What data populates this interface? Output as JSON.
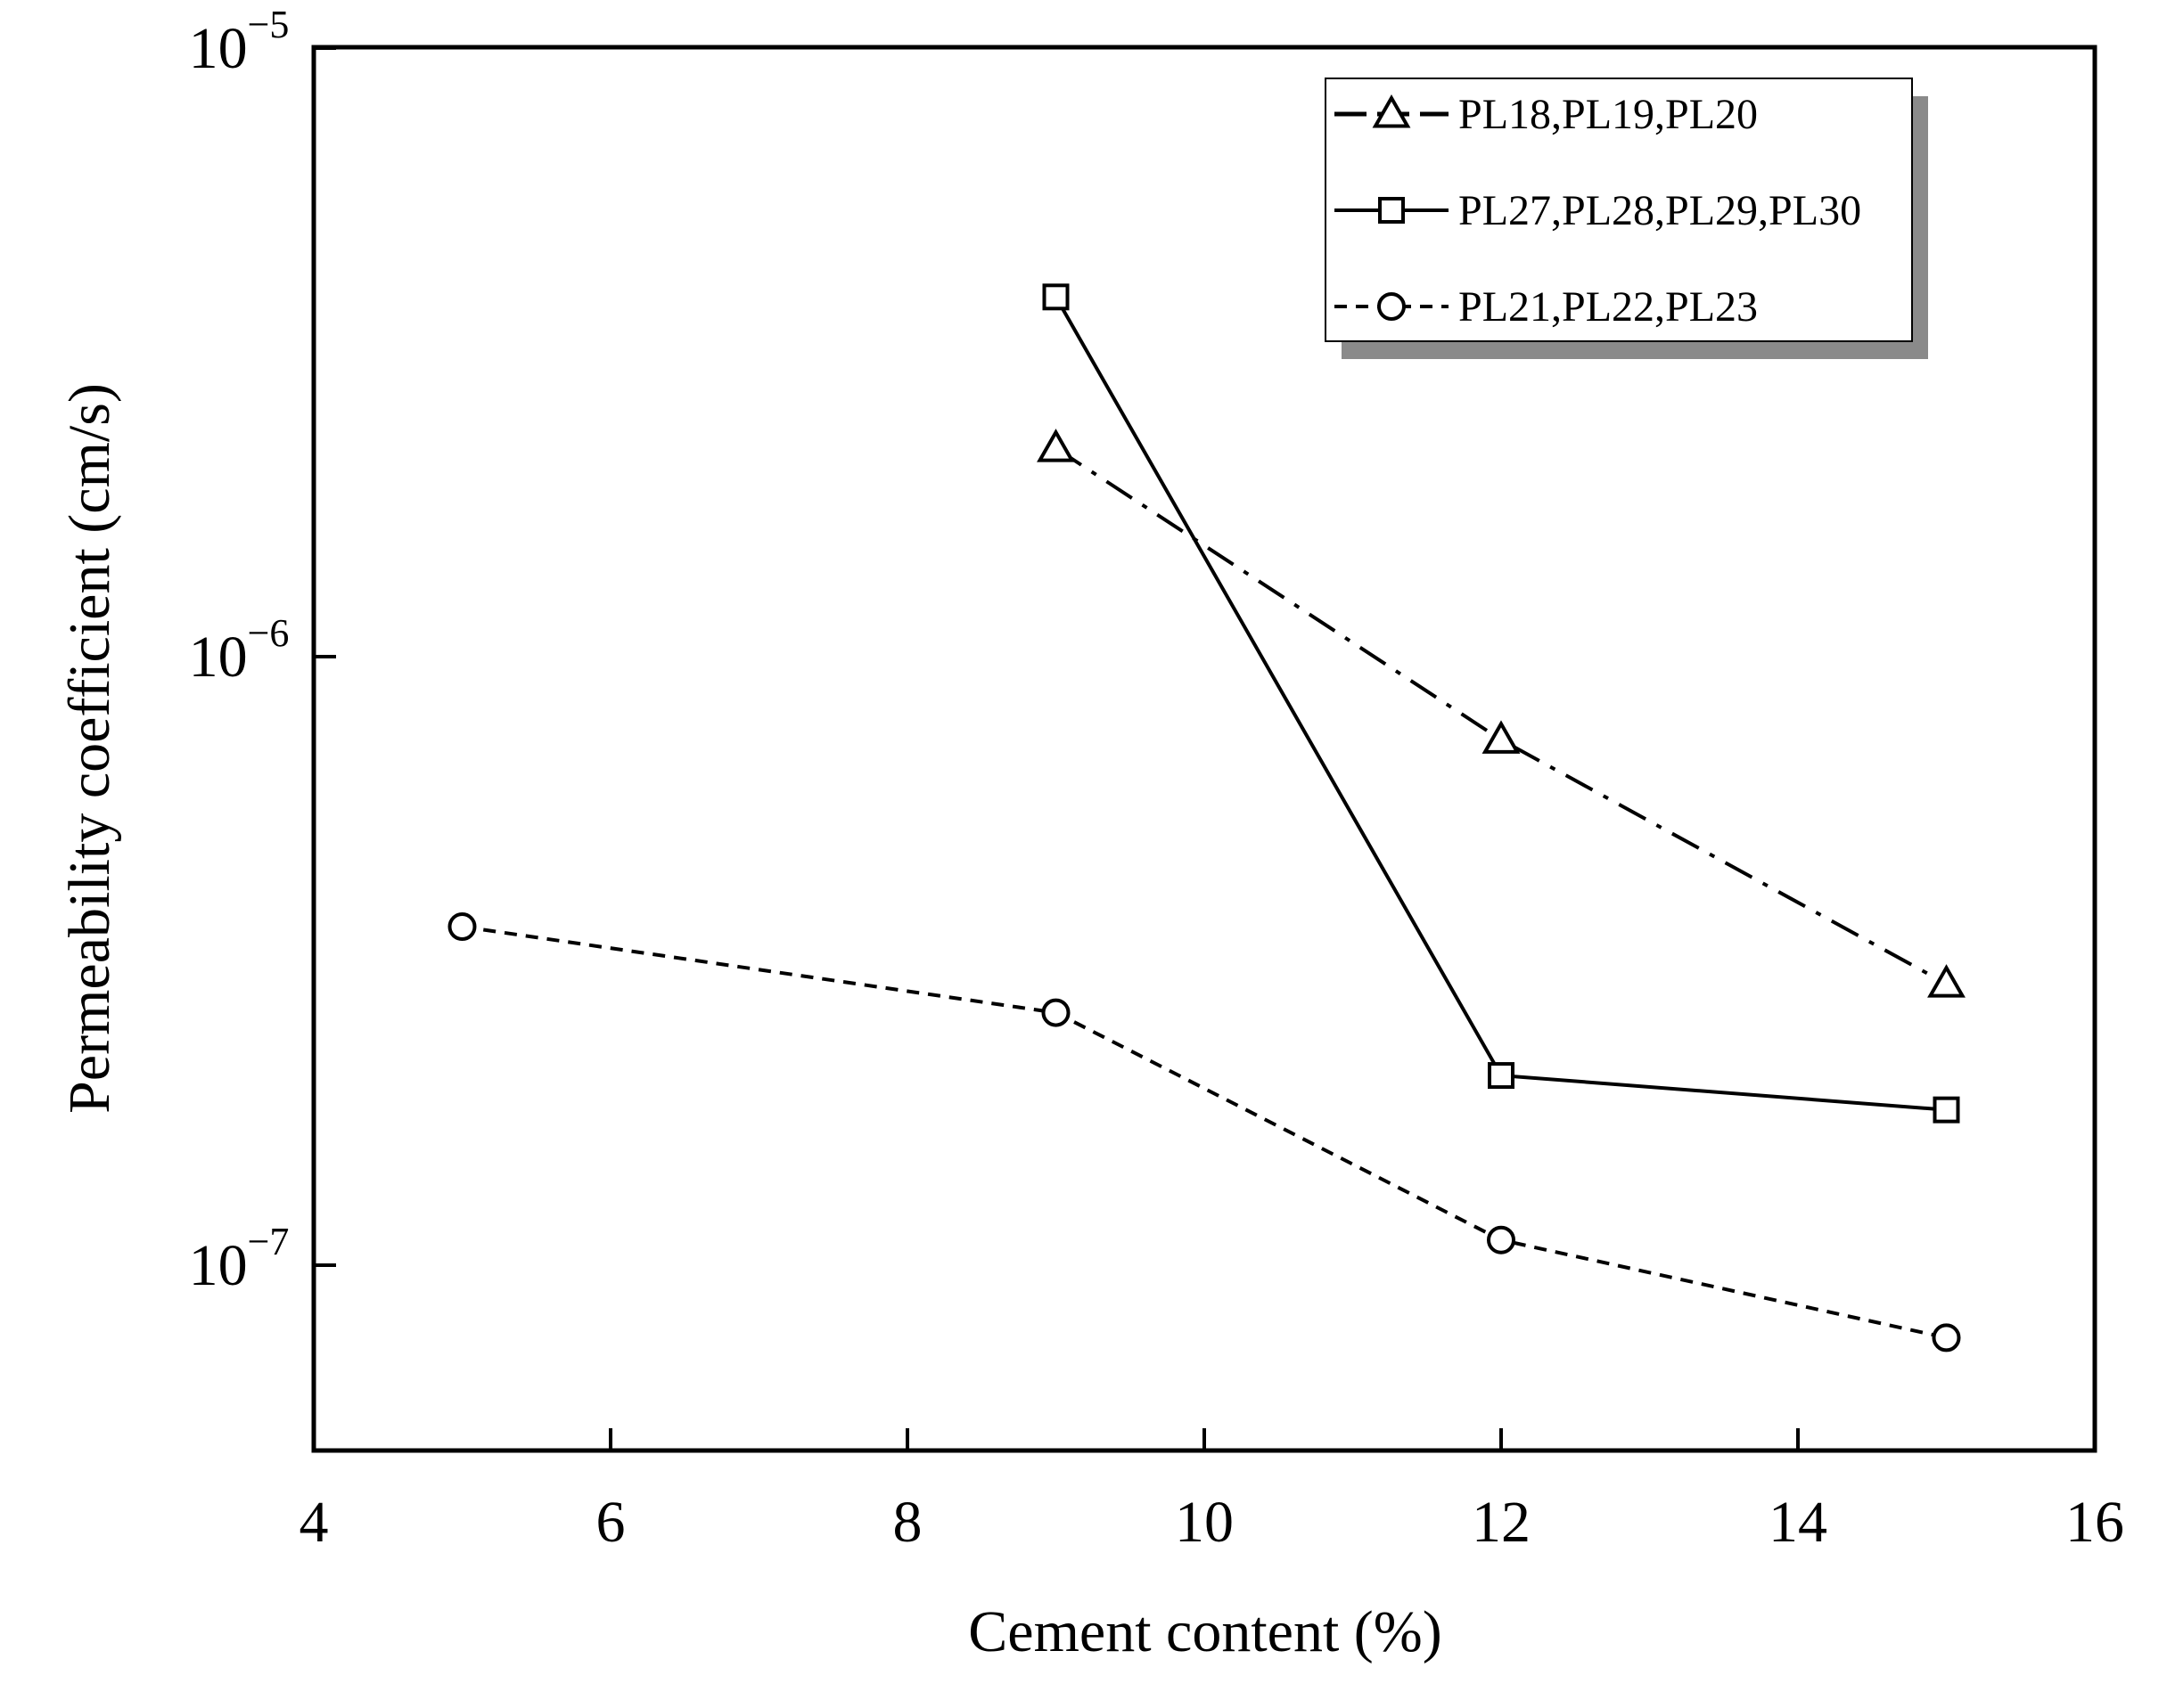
{
  "chart_data": {
    "type": "line",
    "xlabel": "Cement content (%)",
    "ylabel": "Permeability coefficient (cm/s)",
    "xlim": [
      4,
      16
    ],
    "ylim": [
      6e-08,
      1e-05
    ],
    "yscale": "log",
    "x_ticks": [
      4,
      6,
      8,
      10,
      12,
      14,
      16
    ],
    "y_ticks": [
      {
        "value": 1e-07,
        "base": "10",
        "exp": "−7"
      },
      {
        "value": 1e-06,
        "base": "10",
        "exp": "−6"
      },
      {
        "value": 1e-05,
        "base": "10",
        "exp": "−5"
      }
    ],
    "grid": false,
    "legend_position": "top-right",
    "series": [
      {
        "name": "PL18,PL19,PL20",
        "marker": "triangle",
        "line_style": "dashdot",
        "x": [
          9,
          12,
          15
        ],
        "y": [
          2.2e-06,
          7.3e-07,
          2.9e-07
        ]
      },
      {
        "name": "PL27,PL28,PL29,PL30",
        "marker": "square",
        "line_style": "solid",
        "x": [
          9,
          12,
          15
        ],
        "y": [
          3.9e-06,
          2.05e-07,
          1.8e-07
        ]
      },
      {
        "name": "PL21,PL22,PL23",
        "marker": "circle",
        "line_style": "dashed",
        "x": [
          5,
          9,
          12,
          15
        ],
        "y": [
          3.6e-07,
          2.6e-07,
          1.1e-07,
          7.6e-08
        ]
      }
    ]
  }
}
